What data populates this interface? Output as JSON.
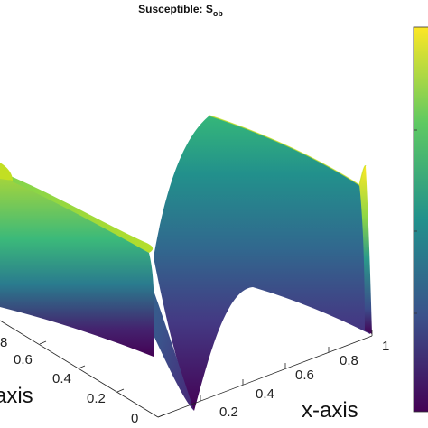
{
  "chart_data": {
    "type": "surface",
    "title": {
      "main": "Susceptible: S",
      "subscript": "ob"
    },
    "xlabel": "x-axis",
    "ylabel": "axis",
    "x_ticks": [
      "0.2",
      "0.4",
      "0.6",
      "0.8",
      "1"
    ],
    "y_ticks": [
      "0",
      "0.2",
      "0.4",
      "0.6",
      "8"
    ],
    "colormap": "viridis",
    "colors": {
      "low": "#440154",
      "mid": "#21918c",
      "high": "#fde725"
    },
    "surface_profile": {
      "description_values": "S_ob as function of x: high near x=0 and x=1, low in middle",
      "x": [
        0,
        0.05,
        0.1,
        0.15,
        0.2,
        0.3,
        0.4,
        0.5,
        0.6,
        0.7,
        0.8,
        0.85,
        0.9,
        0.95,
        1.0
      ],
      "s": [
        1.0,
        0.55,
        0.32,
        0.2,
        0.12,
        0.06,
        0.03,
        0.02,
        0.03,
        0.06,
        0.12,
        0.2,
        0.32,
        0.55,
        1.0
      ]
    }
  }
}
